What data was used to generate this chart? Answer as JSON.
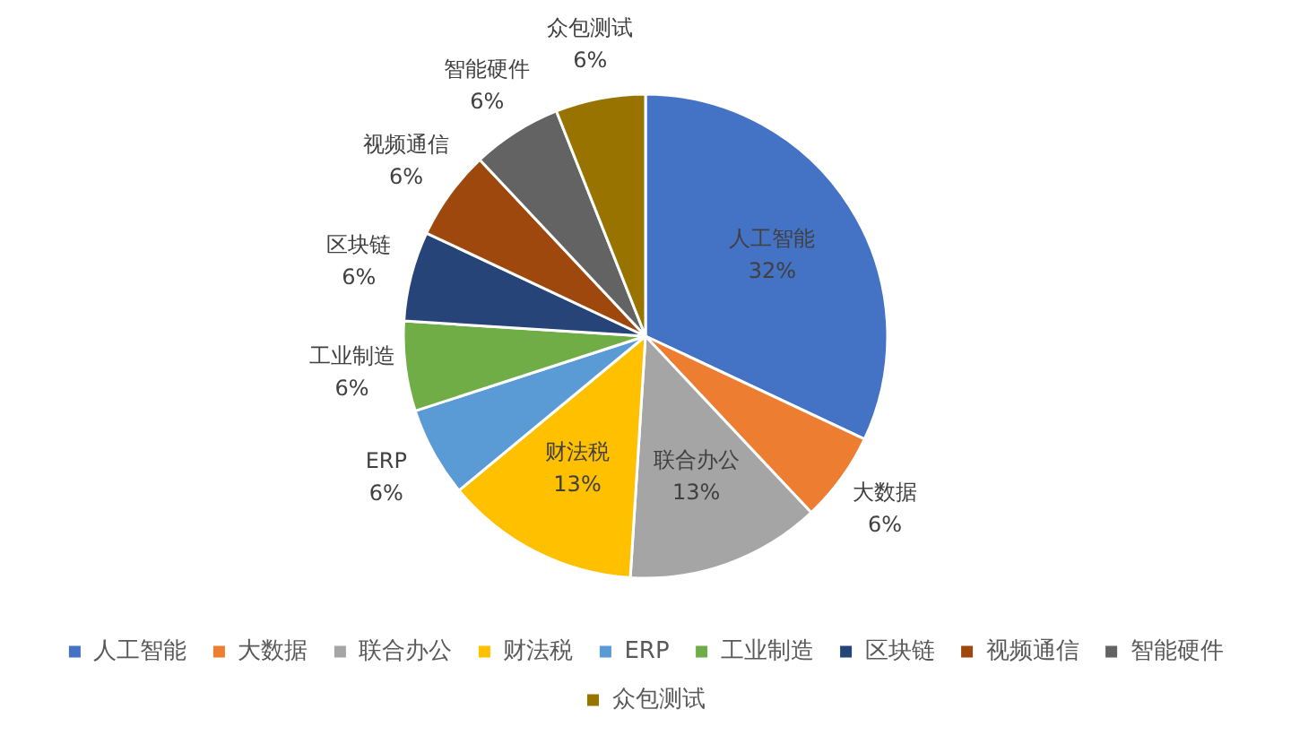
{
  "chart_data": {
    "type": "pie",
    "categories": [
      "人工智能",
      "大数据",
      "联合办公",
      "财法税",
      "ERP",
      "工业制造",
      "区块链",
      "视频通信",
      "智能硬件",
      "众包测试"
    ],
    "values": [
      32,
      6,
      13,
      13,
      6,
      6,
      6,
      6,
      6,
      6
    ],
    "value_labels": [
      "32%",
      "6%",
      "13%",
      "13%",
      "6%",
      "6%",
      "6%",
      "6%",
      "6%",
      "6%"
    ],
    "colors": [
      "#4472c4",
      "#ed7d31",
      "#a5a5a5",
      "#ffc000",
      "#5b9bd5",
      "#70ad47",
      "#264478",
      "#9e480e",
      "#636363",
      "#997300"
    ],
    "legend": "bottom"
  }
}
